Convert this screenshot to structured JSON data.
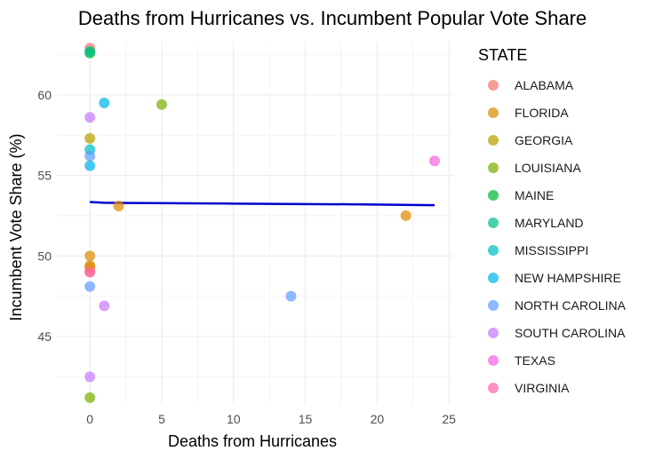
{
  "chart_data": {
    "type": "scatter",
    "title": "Deaths from Hurricanes vs. Incumbent Popular Vote Share",
    "xlabel": "Deaths from Hurricanes",
    "ylabel": "Incumbent Vote Share (%)",
    "xlim": [
      -2.3,
      25.3
    ],
    "ylim": [
      40.7,
      63.3
    ],
    "xticks": [
      0,
      5,
      10,
      15,
      20,
      25
    ],
    "yticks": [
      45,
      50,
      55,
      60
    ],
    "grid": true,
    "legend": {
      "title": "STATE",
      "placement": "right"
    },
    "series": [
      {
        "name": "ALABAMA",
        "color": "#F8766D",
        "points": [
          [
            0,
            62.9
          ],
          [
            0,
            49.0
          ]
        ]
      },
      {
        "name": "FLORIDA",
        "color": "#DE8C00",
        "points": [
          [
            0,
            50.0
          ],
          [
            0,
            49.4
          ],
          [
            0,
            49.3
          ],
          [
            2,
            53.1
          ],
          [
            22,
            52.5
          ]
        ]
      },
      {
        "name": "GEORGIA",
        "color": "#B79F00",
        "points": [
          [
            0,
            57.3
          ]
        ]
      },
      {
        "name": "LOUISIANA",
        "color": "#7CAE00",
        "points": [
          [
            5,
            59.4
          ],
          [
            0,
            41.2
          ]
        ]
      },
      {
        "name": "MAINE",
        "color": "#00BA38",
        "points": [
          [
            0,
            62.6
          ]
        ]
      },
      {
        "name": "MARYLAND",
        "color": "#00C08B",
        "points": [
          [
            0,
            62.7
          ]
        ]
      },
      {
        "name": "MISSISSIPPI",
        "color": "#00BFC4",
        "points": [
          [
            0,
            56.6
          ]
        ]
      },
      {
        "name": "NEW HAMPSHIRE",
        "color": "#00B4F0",
        "points": [
          [
            1,
            59.5
          ],
          [
            0,
            55.6
          ]
        ]
      },
      {
        "name": "NORTH CAROLINA",
        "color": "#619CFF",
        "points": [
          [
            0,
            56.2
          ],
          [
            0,
            48.1
          ],
          [
            14,
            47.5
          ]
        ]
      },
      {
        "name": "SOUTH CAROLINA",
        "color": "#C77CFF",
        "points": [
          [
            0,
            58.6
          ],
          [
            1,
            46.9
          ],
          [
            0,
            42.5
          ]
        ]
      },
      {
        "name": "TEXAS",
        "color": "#F564E3",
        "points": [
          [
            24,
            55.9
          ]
        ]
      },
      {
        "name": "VIRGINIA",
        "color": "#FF64B0",
        "points": [
          [
            0,
            49.0
          ]
        ]
      }
    ],
    "trend_line": {
      "color": "#0000CD",
      "points": [
        [
          0,
          53.35
        ],
        [
          1,
          53.3
        ],
        [
          10,
          53.25
        ],
        [
          19,
          53.2
        ],
        [
          24,
          53.15
        ]
      ]
    }
  }
}
